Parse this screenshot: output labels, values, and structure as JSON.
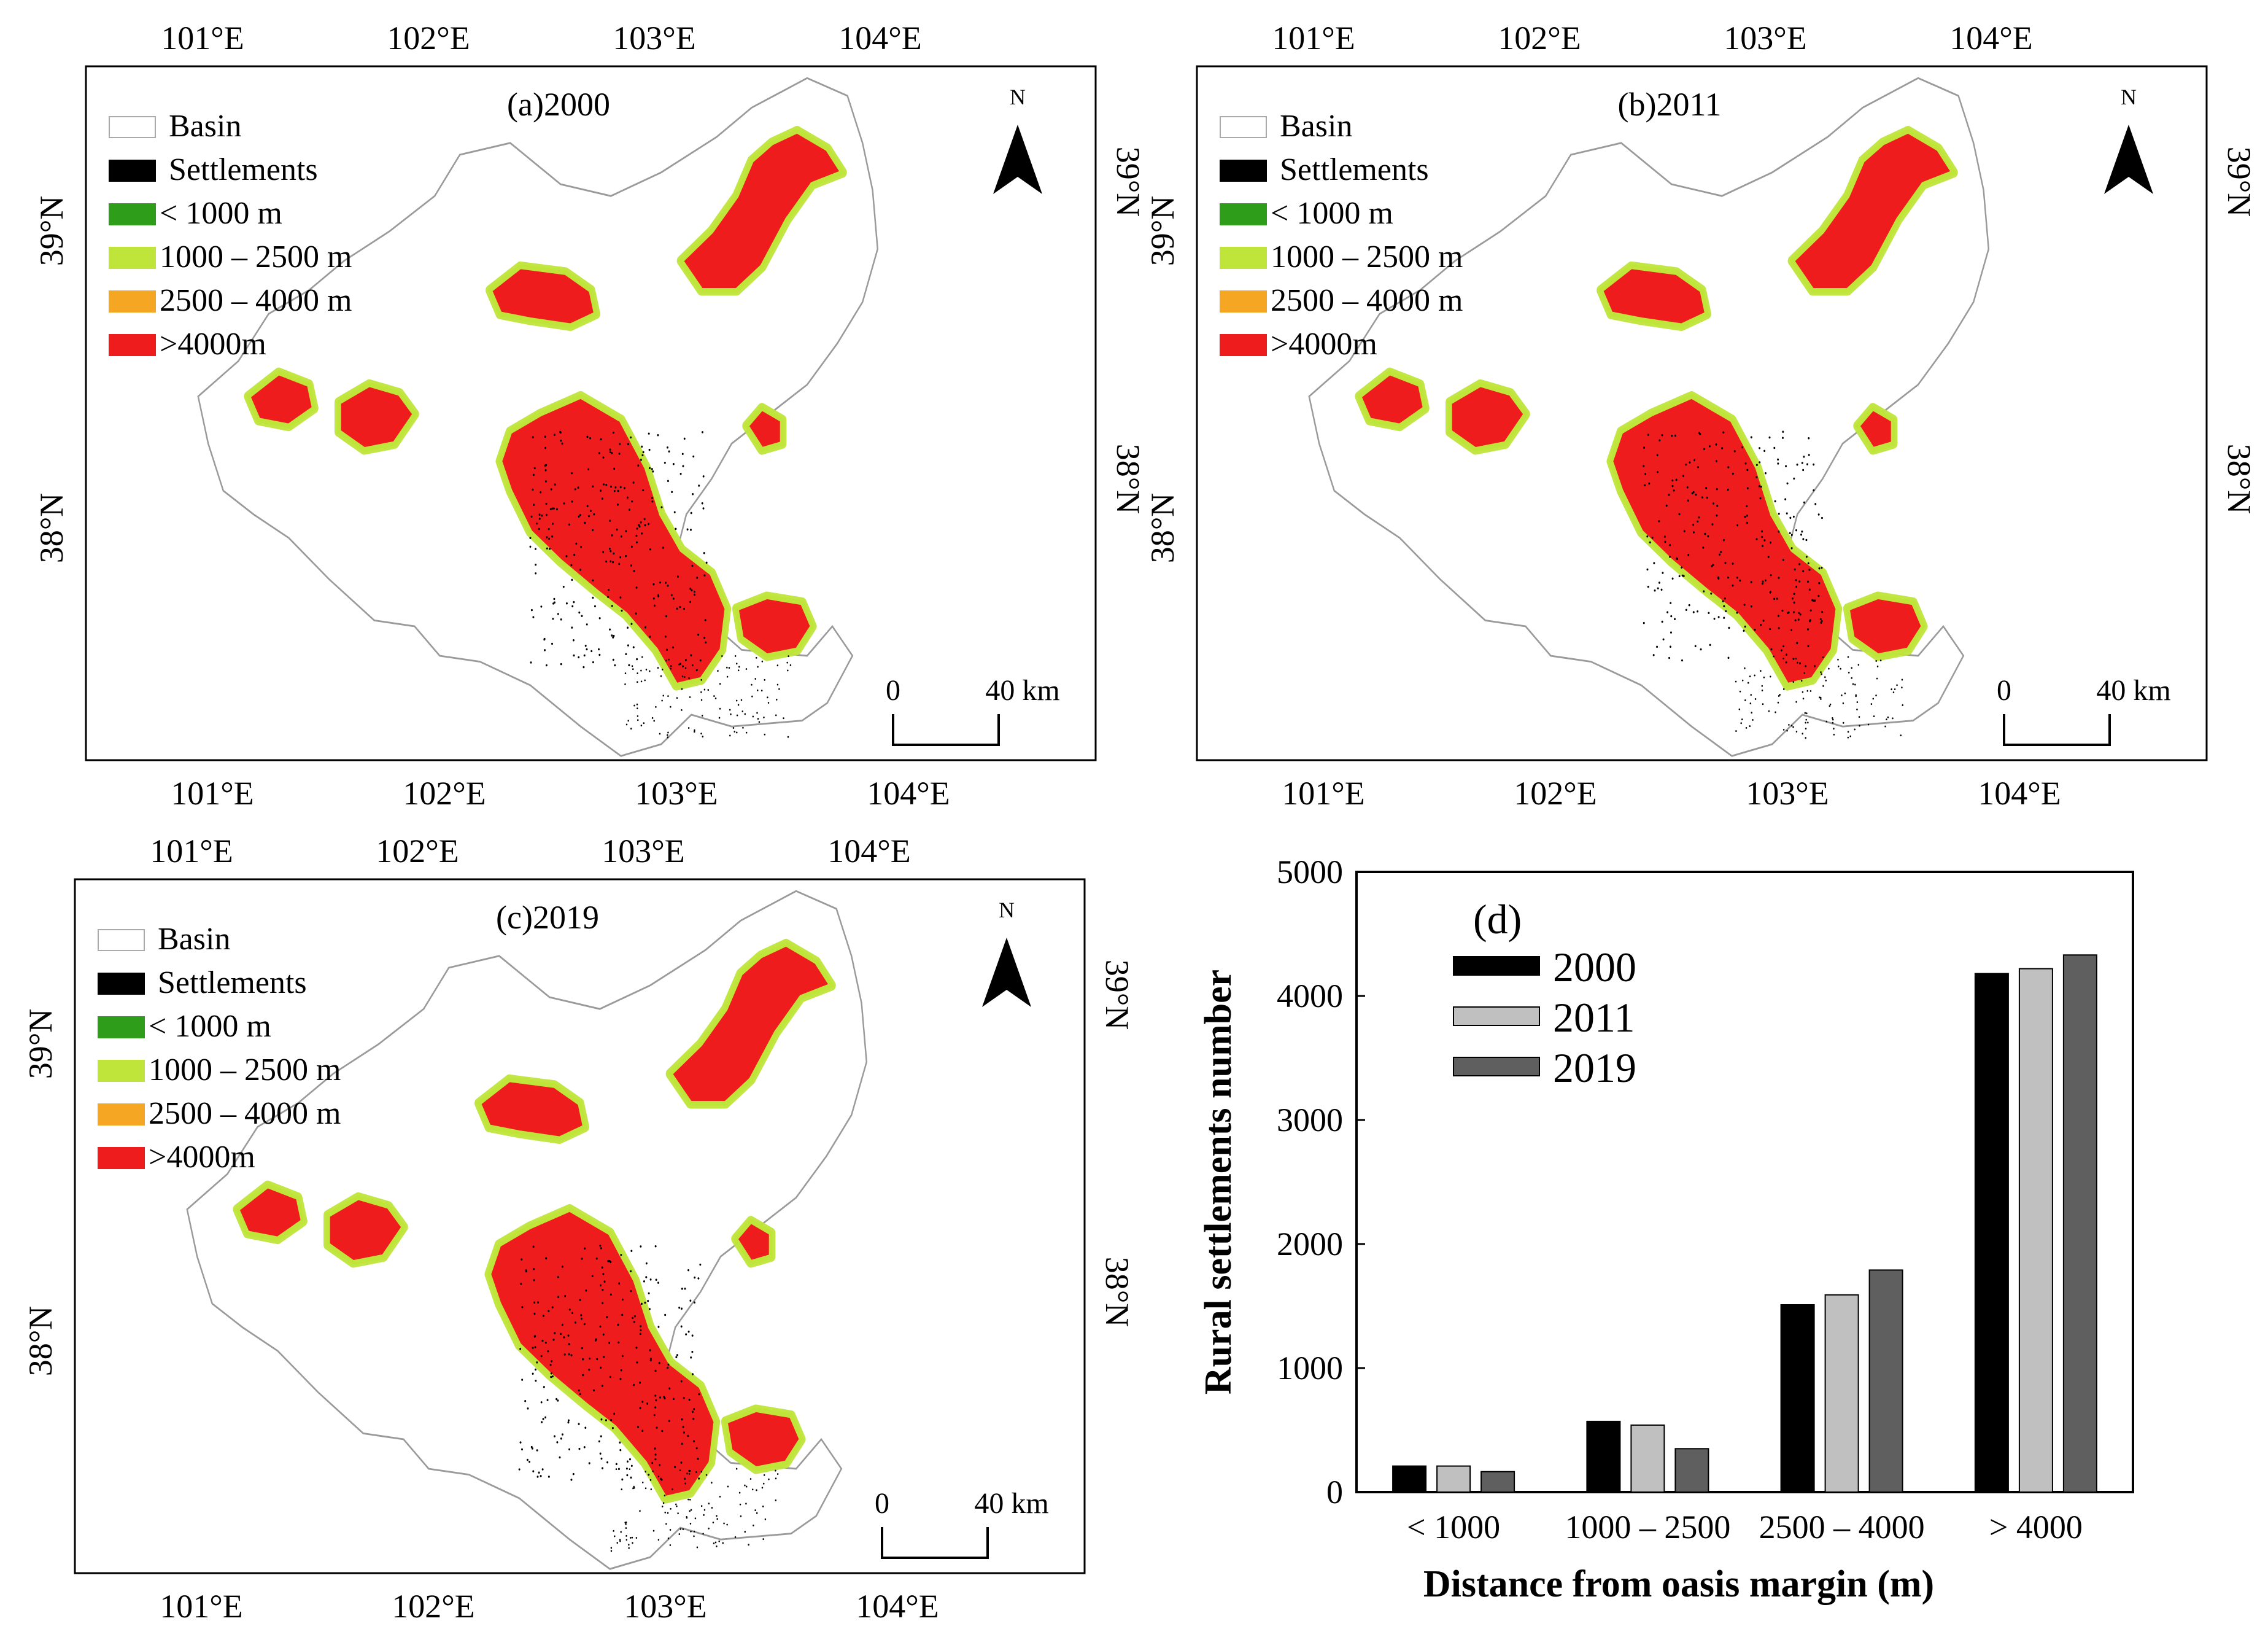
{
  "palette": {
    "settlements": "#000000",
    "lt1000": "#2e9e1a",
    "r1000_2500": "#bfe53a",
    "r2500_4000": "#f5a623",
    "gt4000": "#ee1c1c",
    "basin_fill": "#ffffff",
    "basin_stroke": "#9a9a9a",
    "river": "#1f3f9a",
    "bar2000": "#000000",
    "bar2011": "#c0c0c0",
    "bar2019": "#5f5f5f"
  },
  "maps": [
    {
      "id": "a",
      "title": "(a)2000"
    },
    {
      "id": "b",
      "title": "(b)2011"
    },
    {
      "id": "c",
      "title": "(c)2019"
    }
  ],
  "map_axes": {
    "lon_ticks": [
      "101°E",
      "102°E",
      "103°E",
      "104°E"
    ],
    "lat_ticks": [
      "39°N",
      "38°N"
    ]
  },
  "map_legend": [
    {
      "label": "Basin",
      "color_key": "basin_fill"
    },
    {
      "label": "Settlements",
      "color_key": "settlements"
    },
    {
      "label": "< 1000 m",
      "color_key": "lt1000"
    },
    {
      "label": "1000 – 2500 m",
      "color_key": "r1000_2500"
    },
    {
      "label": "2500 – 4000 m",
      "color_key": "r2500_4000"
    },
    {
      "label": ">4000m",
      "color_key": "gt4000"
    }
  ],
  "north_label": "N",
  "scale_bar": {
    "start": "0",
    "end": "40 km"
  },
  "chart_data": {
    "type": "bar",
    "panel_label": "(d)",
    "categories": [
      "< 1000",
      "1000 – 2500",
      "2500 – 4000",
      "> 4000"
    ],
    "series": [
      {
        "name": "2000",
        "values": [
          210,
          570,
          1510,
          4180
        ]
      },
      {
        "name": "2011",
        "values": [
          210,
          540,
          1590,
          4220
        ]
      },
      {
        "name": "2019",
        "values": [
          165,
          350,
          1790,
          4330
        ]
      }
    ],
    "xlabel": "Distance from oasis margin (m)",
    "ylabel": "Rural settlements number",
    "ylim": [
      0,
      5000
    ],
    "yticks": [
      "0",
      "1000",
      "2000",
      "3000",
      "4000",
      "5000"
    ],
    "legend_position": "top-left"
  }
}
